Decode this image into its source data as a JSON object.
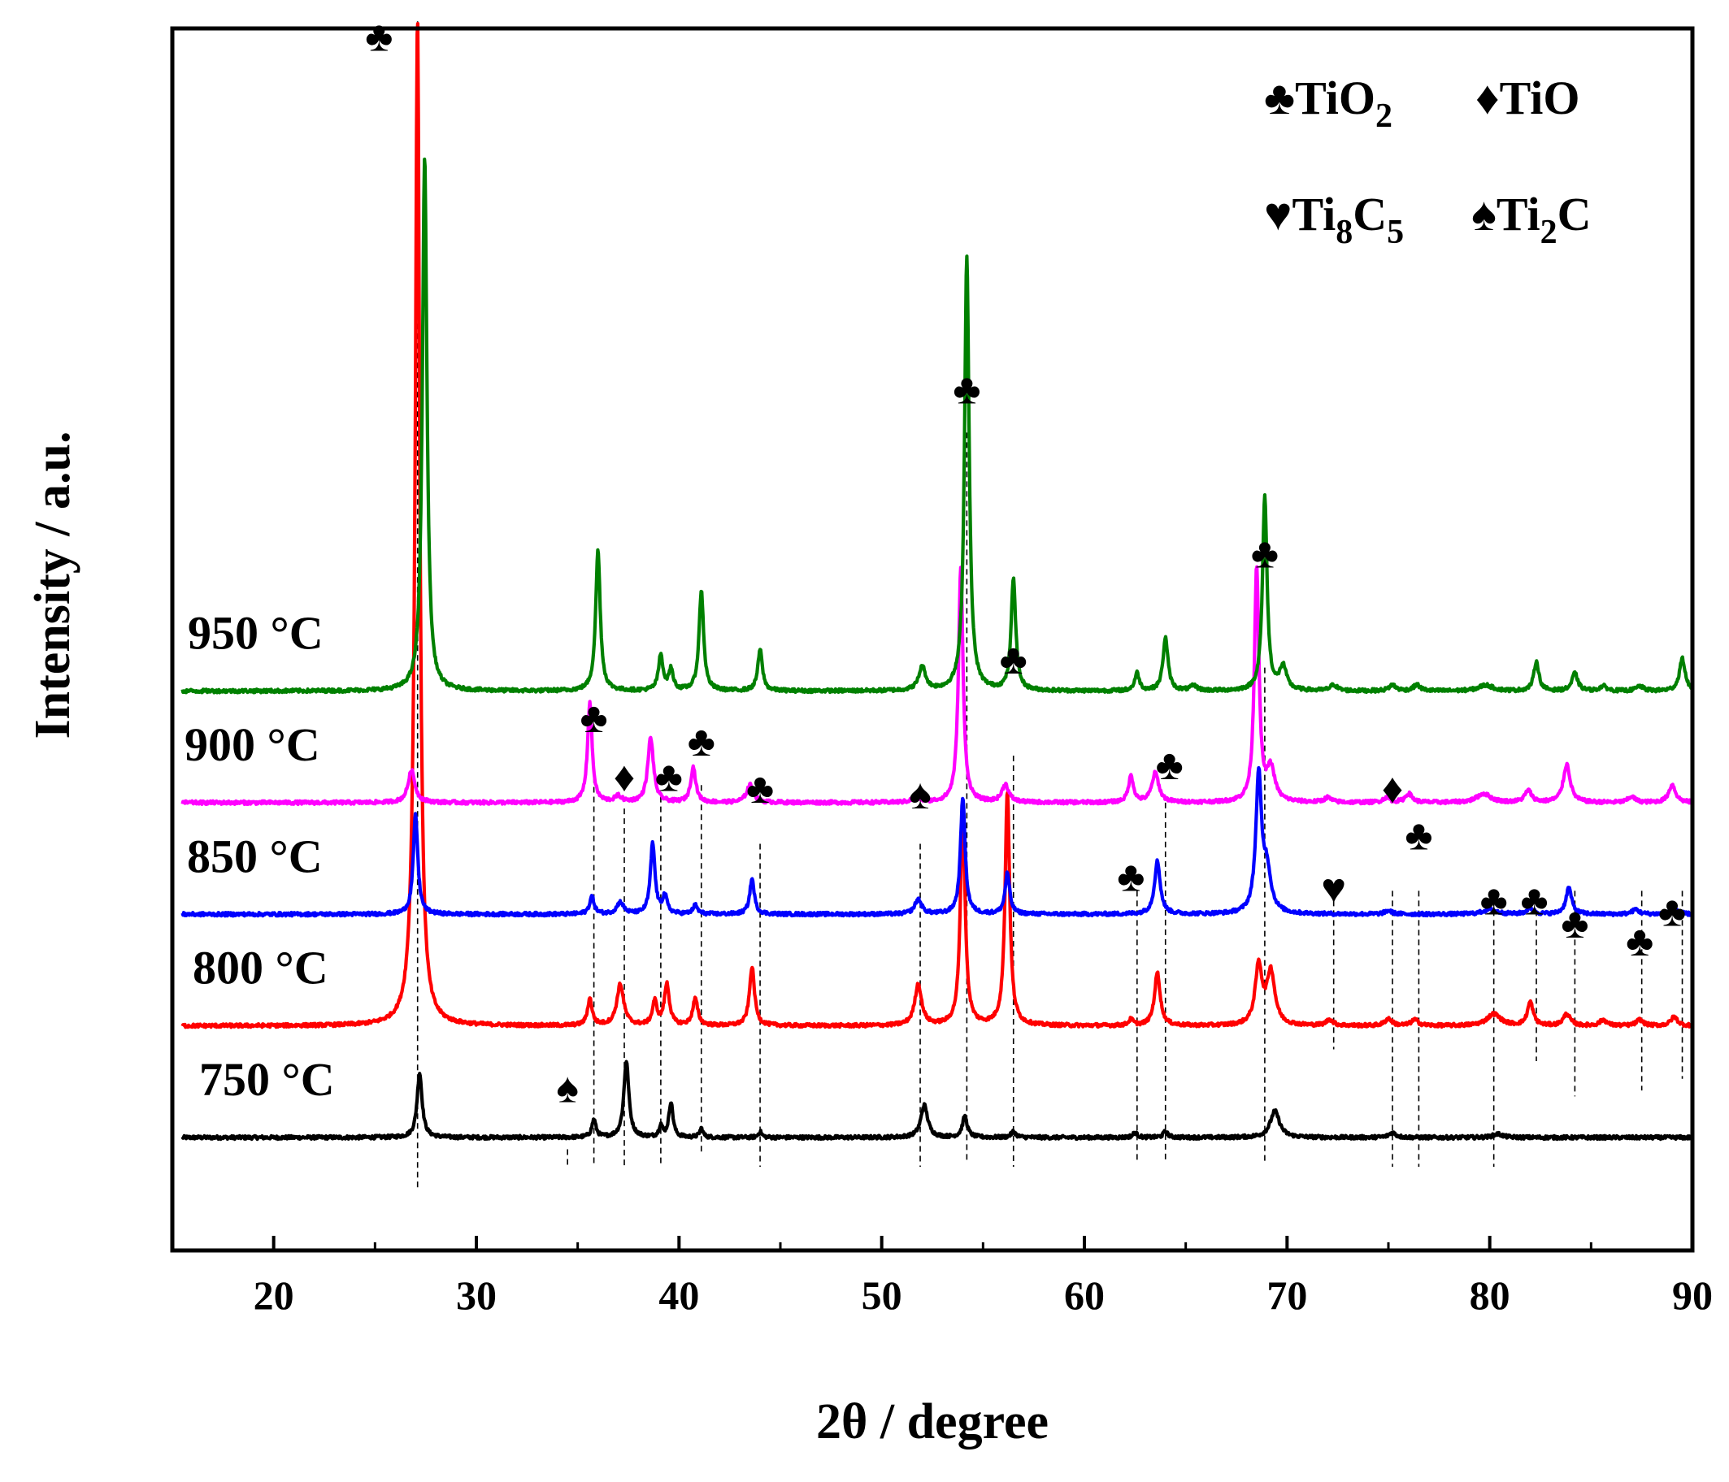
{
  "chart_data": {
    "type": "line",
    "title": "",
    "xlabel": "2θ / degree",
    "ylabel": "Intensity / a.u.",
    "xlim": [
      15,
      90
    ],
    "xticks": [
      "20",
      "30",
      "40",
      "50",
      "60",
      "70",
      "80",
      "90"
    ],
    "yticks_shown": false,
    "offset_spacing": 0.19,
    "series": [
      {
        "name": "750 °C",
        "label": "750 °C",
        "color": "#000000",
        "offset": 0,
        "peaks": [
          {
            "x": 27.2,
            "h": 0.11,
            "w": 0.22
          },
          {
            "x": 35.8,
            "h": 0.03,
            "w": 0.18
          },
          {
            "x": 37.4,
            "h": 0.13,
            "w": 0.22
          },
          {
            "x": 39.1,
            "h": 0.02,
            "w": 0.15
          },
          {
            "x": 39.6,
            "h": 0.06,
            "w": 0.18
          },
          {
            "x": 41.1,
            "h": 0.015,
            "w": 0.15
          },
          {
            "x": 44.0,
            "h": 0.01,
            "w": 0.15
          },
          {
            "x": 52.1,
            "h": 0.055,
            "w": 0.3
          },
          {
            "x": 54.1,
            "h": 0.035,
            "w": 0.22
          },
          {
            "x": 56.5,
            "h": 0.01,
            "w": 0.2
          },
          {
            "x": 62.5,
            "h": 0.008,
            "w": 0.2
          },
          {
            "x": 64.0,
            "h": 0.01,
            "w": 0.2
          },
          {
            "x": 69.4,
            "h": 0.045,
            "w": 0.4
          },
          {
            "x": 75.2,
            "h": 0.008,
            "w": 0.3
          },
          {
            "x": 80.4,
            "h": 0.006,
            "w": 0.4
          }
        ]
      },
      {
        "name": "800 °C",
        "label": "800 °C",
        "color": "#ff0000",
        "offset": 1,
        "peaks": [
          {
            "x": 27.1,
            "h": 1.55,
            "w": 0.18
          },
          {
            "x": 27.0,
            "h": 0.2,
            "w": 0.35
          },
          {
            "x": 35.6,
            "h": 0.045,
            "w": 0.2
          },
          {
            "x": 37.1,
            "h": 0.07,
            "w": 0.3
          },
          {
            "x": 38.8,
            "h": 0.04,
            "w": 0.2
          },
          {
            "x": 39.4,
            "h": 0.07,
            "w": 0.22
          },
          {
            "x": 40.8,
            "h": 0.045,
            "w": 0.22
          },
          {
            "x": 43.6,
            "h": 0.1,
            "w": 0.22
          },
          {
            "x": 51.8,
            "h": 0.07,
            "w": 0.3
          },
          {
            "x": 54.0,
            "h": 0.38,
            "w": 0.2
          },
          {
            "x": 56.2,
            "h": 0.4,
            "w": 0.2
          },
          {
            "x": 62.3,
            "h": 0.01,
            "w": 0.2
          },
          {
            "x": 63.6,
            "h": 0.09,
            "w": 0.25
          },
          {
            "x": 68.6,
            "h": 0.1,
            "w": 0.3
          },
          {
            "x": 69.2,
            "h": 0.09,
            "w": 0.35
          },
          {
            "x": 72.1,
            "h": 0.01,
            "w": 0.3
          },
          {
            "x": 75.0,
            "h": 0.012,
            "w": 0.3
          },
          {
            "x": 76.3,
            "h": 0.01,
            "w": 0.3
          },
          {
            "x": 80.2,
            "h": 0.02,
            "w": 0.6
          },
          {
            "x": 82.0,
            "h": 0.04,
            "w": 0.25
          },
          {
            "x": 83.8,
            "h": 0.02,
            "w": 0.3
          },
          {
            "x": 85.6,
            "h": 0.01,
            "w": 0.3
          },
          {
            "x": 87.4,
            "h": 0.01,
            "w": 0.3
          },
          {
            "x": 89.1,
            "h": 0.015,
            "w": 0.3
          }
        ]
      },
      {
        "name": "850 °C",
        "label": "850 °C",
        "color": "#0000ff",
        "offset": 2,
        "peaks": [
          {
            "x": 27.0,
            "h": 0.17,
            "w": 0.2
          },
          {
            "x": 35.7,
            "h": 0.03,
            "w": 0.2
          },
          {
            "x": 37.1,
            "h": 0.02,
            "w": 0.3
          },
          {
            "x": 38.7,
            "h": 0.12,
            "w": 0.2
          },
          {
            "x": 39.3,
            "h": 0.03,
            "w": 0.2
          },
          {
            "x": 40.8,
            "h": 0.015,
            "w": 0.2
          },
          {
            "x": 43.6,
            "h": 0.06,
            "w": 0.2
          },
          {
            "x": 51.8,
            "h": 0.025,
            "w": 0.3
          },
          {
            "x": 54.0,
            "h": 0.2,
            "w": 0.2
          },
          {
            "x": 56.2,
            "h": 0.07,
            "w": 0.2
          },
          {
            "x": 63.6,
            "h": 0.09,
            "w": 0.25
          },
          {
            "x": 68.6,
            "h": 0.23,
            "w": 0.25
          },
          {
            "x": 69.0,
            "h": 0.07,
            "w": 0.35
          },
          {
            "x": 75.0,
            "h": 0.006,
            "w": 0.3
          },
          {
            "x": 80.0,
            "h": 0.008,
            "w": 0.6
          },
          {
            "x": 82.0,
            "h": 0.01,
            "w": 0.3
          },
          {
            "x": 83.9,
            "h": 0.045,
            "w": 0.25
          },
          {
            "x": 87.2,
            "h": 0.008,
            "w": 0.3
          },
          {
            "x": 89.1,
            "h": 0.01,
            "w": 0.3
          }
        ]
      },
      {
        "name": "900 °C",
        "label": "900 °C",
        "color": "#ff00ff",
        "offset": 3,
        "peaks": [
          {
            "x": 26.8,
            "h": 0.055,
            "w": 0.3
          },
          {
            "x": 35.6,
            "h": 0.17,
            "w": 0.2
          },
          {
            "x": 37.0,
            "h": 0.01,
            "w": 0.3
          },
          {
            "x": 38.6,
            "h": 0.11,
            "w": 0.25
          },
          {
            "x": 40.7,
            "h": 0.06,
            "w": 0.22
          },
          {
            "x": 43.5,
            "h": 0.03,
            "w": 0.3
          },
          {
            "x": 51.7,
            "h": 0.01,
            "w": 0.3
          },
          {
            "x": 53.9,
            "h": 0.4,
            "w": 0.2
          },
          {
            "x": 56.1,
            "h": 0.03,
            "w": 0.3
          },
          {
            "x": 62.3,
            "h": 0.045,
            "w": 0.22
          },
          {
            "x": 63.5,
            "h": 0.05,
            "w": 0.3
          },
          {
            "x": 68.5,
            "h": 0.4,
            "w": 0.2
          },
          {
            "x": 69.2,
            "h": 0.055,
            "w": 0.35
          },
          {
            "x": 72.0,
            "h": 0.008,
            "w": 0.3
          },
          {
            "x": 74.9,
            "h": 0.008,
            "w": 0.3
          },
          {
            "x": 76.0,
            "h": 0.015,
            "w": 0.3
          },
          {
            "x": 79.7,
            "h": 0.015,
            "w": 0.6
          },
          {
            "x": 81.9,
            "h": 0.02,
            "w": 0.3
          },
          {
            "x": 83.8,
            "h": 0.065,
            "w": 0.3
          },
          {
            "x": 87.0,
            "h": 0.01,
            "w": 0.3
          },
          {
            "x": 89.0,
            "h": 0.03,
            "w": 0.3
          }
        ]
      },
      {
        "name": "950 °C",
        "label": "950 °C",
        "color": "#008000",
        "offset": 4,
        "peaks": [
          {
            "x": 27.45,
            "h": 0.91,
            "w": 0.2
          },
          {
            "x": 36.0,
            "h": 0.24,
            "w": 0.2
          },
          {
            "x": 39.1,
            "h": 0.06,
            "w": 0.2
          },
          {
            "x": 39.6,
            "h": 0.035,
            "w": 0.2
          },
          {
            "x": 41.1,
            "h": 0.17,
            "w": 0.2
          },
          {
            "x": 44.0,
            "h": 0.07,
            "w": 0.2
          },
          {
            "x": 52.0,
            "h": 0.04,
            "w": 0.3
          },
          {
            "x": 54.2,
            "h": 0.74,
            "w": 0.2
          },
          {
            "x": 56.5,
            "h": 0.19,
            "w": 0.2
          },
          {
            "x": 62.6,
            "h": 0.03,
            "w": 0.2
          },
          {
            "x": 64.0,
            "h": 0.09,
            "w": 0.22
          },
          {
            "x": 65.4,
            "h": 0.008,
            "w": 0.3
          },
          {
            "x": 68.9,
            "h": 0.33,
            "w": 0.2
          },
          {
            "x": 69.8,
            "h": 0.04,
            "w": 0.3
          },
          {
            "x": 72.3,
            "h": 0.01,
            "w": 0.3
          },
          {
            "x": 75.2,
            "h": 0.01,
            "w": 0.3
          },
          {
            "x": 76.4,
            "h": 0.01,
            "w": 0.3
          },
          {
            "x": 79.8,
            "h": 0.01,
            "w": 0.6
          },
          {
            "x": 82.3,
            "h": 0.05,
            "w": 0.22
          },
          {
            "x": 84.2,
            "h": 0.03,
            "w": 0.25
          },
          {
            "x": 85.6,
            "h": 0.008,
            "w": 0.3
          },
          {
            "x": 87.4,
            "h": 0.008,
            "w": 0.3
          },
          {
            "x": 89.5,
            "h": 0.055,
            "w": 0.25
          }
        ]
      }
    ],
    "reference_lines": [
      {
        "x": 27.1,
        "top": 1.9,
        "bottom": -0.09
      },
      {
        "x": 34.5,
        "top": -0.02,
        "bottom": -0.05
      },
      {
        "x": 35.8,
        "top": 0.63,
        "bottom": -0.05
      },
      {
        "x": 37.3,
        "top": 0.56,
        "bottom": -0.05
      },
      {
        "x": 39.1,
        "top": 0.58,
        "bottom": -0.05
      },
      {
        "x": 41.1,
        "top": 0.6,
        "bottom": -0.03
      },
      {
        "x": 44.0,
        "top": 0.5,
        "bottom": -0.05
      },
      {
        "x": 51.9,
        "top": 0.5,
        "bottom": -0.05
      },
      {
        "x": 54.2,
        "top": 1.2,
        "bottom": -0.04
      },
      {
        "x": 56.5,
        "top": 0.65,
        "bottom": -0.05
      },
      {
        "x": 62.6,
        "top": 0.42,
        "bottom": -0.04
      },
      {
        "x": 64.0,
        "top": 0.57,
        "bottom": -0.04
      },
      {
        "x": 68.9,
        "top": 0.8,
        "bottom": -0.04
      },
      {
        "x": 72.3,
        "top": 0.42,
        "bottom": 0.15
      },
      {
        "x": 75.2,
        "top": 0.42,
        "bottom": -0.05
      },
      {
        "x": 76.5,
        "top": 0.42,
        "bottom": -0.05
      },
      {
        "x": 80.2,
        "top": 0.42,
        "bottom": -0.05
      },
      {
        "x": 82.3,
        "top": 0.42,
        "bottom": 0.13
      },
      {
        "x": 84.2,
        "top": 0.42,
        "bottom": 0.07
      },
      {
        "x": 87.5,
        "top": 0.42,
        "bottom": 0.08
      },
      {
        "x": 89.5,
        "top": 0.42,
        "bottom": 0.1
      }
    ],
    "phase_markers": [
      {
        "x": 25.2,
        "y": 1.85,
        "phase": "TiO2",
        "symbol": "♣"
      },
      {
        "x": 35.8,
        "y": 0.69,
        "phase": "TiO2",
        "symbol": "♣"
      },
      {
        "x": 37.3,
        "y": 0.59,
        "phase": "TiO",
        "symbol": "♦"
      },
      {
        "x": 39.5,
        "y": 0.59,
        "phase": "TiO2",
        "symbol": "♣"
      },
      {
        "x": 41.1,
        "y": 0.65,
        "phase": "TiO2",
        "symbol": "♣"
      },
      {
        "x": 44.0,
        "y": 0.57,
        "phase": "TiO2",
        "symbol": "♣"
      },
      {
        "x": 51.9,
        "y": 0.56,
        "phase": "Ti2C",
        "symbol": "♠"
      },
      {
        "x": 54.2,
        "y": 1.25,
        "phase": "TiO2",
        "symbol": "♣"
      },
      {
        "x": 56.5,
        "y": 0.79,
        "phase": "TiO2",
        "symbol": "♣"
      },
      {
        "x": 62.3,
        "y": 0.42,
        "phase": "TiO2",
        "symbol": "♣"
      },
      {
        "x": 64.2,
        "y": 0.61,
        "phase": "TiO2",
        "symbol": "♣"
      },
      {
        "x": 68.9,
        "y": 0.97,
        "phase": "TiO2",
        "symbol": "♣"
      },
      {
        "x": 72.3,
        "y": 0.4,
        "phase": "Ti8C5",
        "symbol": "♥"
      },
      {
        "x": 75.2,
        "y": 0.57,
        "phase": "TiO",
        "symbol": "♦"
      },
      {
        "x": 76.5,
        "y": 0.49,
        "phase": "TiO2",
        "symbol": "♣"
      },
      {
        "x": 80.2,
        "y": 0.38,
        "phase": "TiO2",
        "symbol": "♣"
      },
      {
        "x": 82.2,
        "y": 0.38,
        "phase": "TiO2",
        "symbol": "♣"
      },
      {
        "x": 84.2,
        "y": 0.34,
        "phase": "TiO2",
        "symbol": "♣"
      },
      {
        "x": 87.4,
        "y": 0.31,
        "phase": "TiO2",
        "symbol": "♣"
      },
      {
        "x": 89.0,
        "y": 0.36,
        "phase": "TiO2",
        "symbol": "♣"
      },
      {
        "x": 34.5,
        "y": 0.06,
        "phase": "Ti2C",
        "symbol": "♠"
      }
    ],
    "legend": {
      "placement": "top-right",
      "row1": [
        {
          "symbol": "♣",
          "base": "TiO",
          "sub": "2",
          "tail": ""
        },
        {
          "symbol": "♦",
          "base": "TiO",
          "sub": "",
          "tail": ""
        }
      ],
      "row2": [
        {
          "symbol": "♥",
          "base": "Ti",
          "sub": "8",
          "tail": "C",
          "sub2": "5"
        },
        {
          "symbol": "♠",
          "base": "Ti",
          "sub": "2",
          "tail": "C",
          "sub2": ""
        }
      ]
    }
  }
}
